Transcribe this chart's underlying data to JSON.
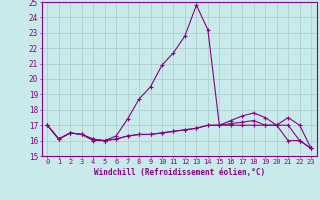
{
  "xlabel": "Windchill (Refroidissement éolien,°C)",
  "background_color": "#c8eaea",
  "grid_color": "#b0d0d0",
  "line_color": "#880088",
  "xlim": [
    -0.5,
    23.5
  ],
  "ylim": [
    15,
    25
  ],
  "yticks": [
    15,
    16,
    17,
    18,
    19,
    20,
    21,
    22,
    23,
    24,
    25
  ],
  "xticks": [
    0,
    1,
    2,
    3,
    4,
    5,
    6,
    7,
    8,
    9,
    10,
    11,
    12,
    13,
    14,
    15,
    16,
    17,
    18,
    19,
    20,
    21,
    22,
    23
  ],
  "curve1_x": [
    0,
    1,
    2,
    3,
    4,
    5,
    6,
    7,
    8,
    9,
    10,
    11,
    12,
    13,
    14,
    15,
    16,
    17,
    18,
    19,
    20,
    21,
    22,
    23
  ],
  "curve1_y": [
    17.0,
    16.1,
    16.5,
    16.4,
    16.0,
    16.0,
    16.3,
    17.4,
    18.7,
    19.5,
    20.9,
    21.7,
    22.8,
    24.8,
    23.2,
    17.0,
    17.3,
    17.6,
    17.8,
    17.5,
    17.0,
    17.5,
    17.0,
    15.5
  ],
  "curve2_x": [
    0,
    1,
    2,
    3,
    4,
    5,
    6,
    7,
    8,
    9,
    10,
    11,
    12,
    13,
    14,
    15,
    16,
    17,
    18,
    19,
    20,
    21,
    22,
    23
  ],
  "curve2_y": [
    17.0,
    16.1,
    16.5,
    16.4,
    16.1,
    16.0,
    16.1,
    16.3,
    16.4,
    16.4,
    16.5,
    16.6,
    16.7,
    16.8,
    17.0,
    17.0,
    17.0,
    17.0,
    17.0,
    17.0,
    17.0,
    16.0,
    16.0,
    15.5
  ],
  "curve3_x": [
    0,
    1,
    2,
    3,
    4,
    5,
    6,
    7,
    8,
    9,
    10,
    11,
    12,
    13,
    14,
    15,
    16,
    17,
    18,
    19,
    20,
    21,
    22,
    23
  ],
  "curve3_y": [
    17.0,
    16.1,
    16.5,
    16.4,
    16.1,
    16.0,
    16.1,
    16.3,
    16.4,
    16.4,
    16.5,
    16.6,
    16.7,
    16.8,
    17.0,
    17.0,
    17.1,
    17.2,
    17.3,
    17.0,
    17.0,
    17.0,
    16.0,
    15.5
  ]
}
